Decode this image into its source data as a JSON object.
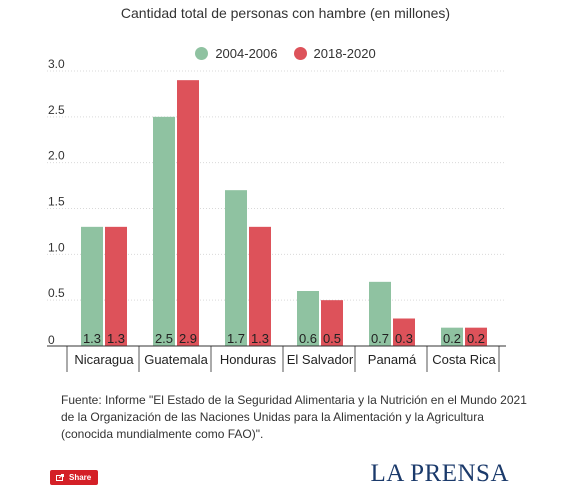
{
  "chart_data": {
    "type": "bar",
    "title": "Cantidad total de personas con hambre (en millones)",
    "categories": [
      "Nicaragua",
      "Guatemala",
      "Honduras",
      "El Salvador",
      "Panamá",
      "Costa Rica"
    ],
    "series": [
      {
        "name": "2004-2006",
        "color": "#8fc2a1",
        "values": [
          1.3,
          2.5,
          1.7,
          0.6,
          0.7,
          0.2
        ]
      },
      {
        "name": "2018-2020",
        "color": "#dd525a",
        "values": [
          1.3,
          2.9,
          1.3,
          0.5,
          0.3,
          0.2
        ]
      }
    ],
    "y_ticks": [
      "0",
      "0.5",
      "1.0",
      "1.5",
      "2.0",
      "2.5",
      "3.0"
    ],
    "ylim": [
      0,
      3.0
    ],
    "grid": true,
    "legend_position": "top-center",
    "bar_labels": [
      [
        "1.3",
        "2.5",
        "1.7",
        "0.6",
        "0.7",
        "0.2"
      ],
      [
        "1.3",
        "2.9",
        "1.3",
        "0.5",
        "0.3",
        "0.2"
      ]
    ]
  },
  "source_note": "Fuente: Informe \"El Estado de la Seguridad Alimentaria y la Nutrición en el Mundo 2021 de la Organización de las Naciones Unidas para la Alimentación y la Agricultura (conocida mundialmente como FAO)\".",
  "share_label": "Share",
  "brand": "LA PRENSA"
}
